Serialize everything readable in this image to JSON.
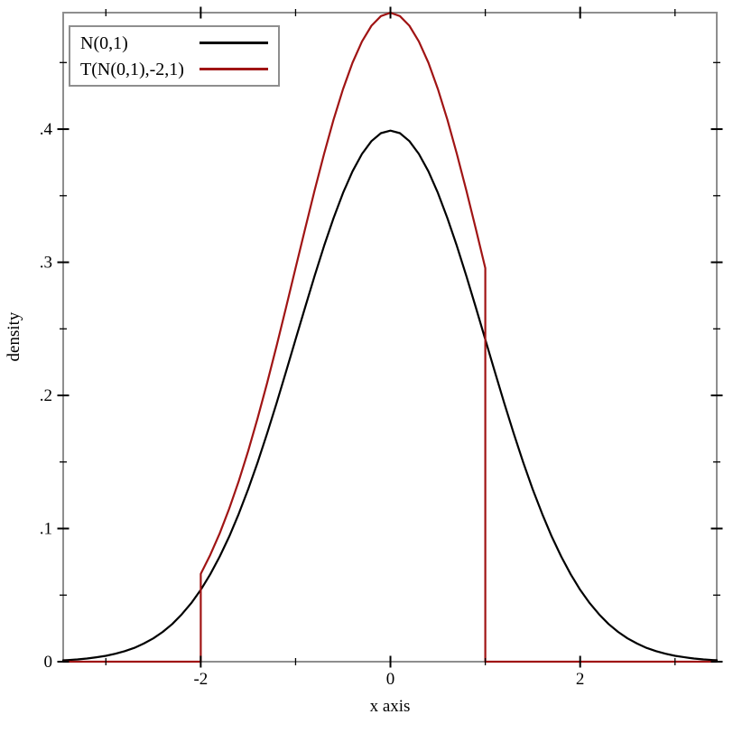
{
  "canvas": {
    "background": "#ffffff"
  },
  "chart_data": {
    "type": "line",
    "title": "",
    "xlabel": "x axis",
    "ylabel": "density",
    "xlim": [
      -3.45,
      3.44
    ],
    "ylim": [
      0,
      0.4875
    ],
    "grid": false,
    "background": "#ffffff",
    "frame_color": "#8e8e8e",
    "tick_color": "#000000",
    "mirror_ticks": true,
    "legend": {
      "position": "top-left",
      "border_color": "#8e8e8e",
      "entries": [
        "N(0,1)",
        "T(N(0,1),-2,1)"
      ]
    },
    "x_ticks": {
      "major": [
        {
          "v": -2,
          "label": "-2"
        },
        {
          "v": 0,
          "label": "0"
        },
        {
          "v": 2,
          "label": "2"
        }
      ],
      "minor": [
        -3,
        -1,
        1,
        3
      ]
    },
    "y_ticks": {
      "major": [
        {
          "v": 0,
          "label": "0"
        },
        {
          "v": 0.1,
          "label": ".1"
        },
        {
          "v": 0.2,
          "label": ".2"
        },
        {
          "v": 0.3,
          "label": ".3"
        },
        {
          "v": 0.4,
          "label": ".4"
        }
      ],
      "minor": [
        0.05,
        0.15,
        0.25,
        0.35,
        0.45
      ]
    },
    "series": [
      {
        "name": "N(0,1)",
        "description": "standard normal density",
        "color": "#000000",
        "stroke_width": 2.2,
        "peak": [
          0,
          0.3989
        ],
        "points": [
          [
            -3.45,
            0.001
          ],
          [
            -3.4,
            0.0012
          ],
          [
            -3.3,
            0.0017
          ],
          [
            -3.2,
            0.0024
          ],
          [
            -3.1,
            0.0033
          ],
          [
            -3.0,
            0.0044
          ],
          [
            -2.9,
            0.006
          ],
          [
            -2.8,
            0.0079
          ],
          [
            -2.7,
            0.0104
          ],
          [
            -2.6,
            0.0136
          ],
          [
            -2.5,
            0.0175
          ],
          [
            -2.4,
            0.0224
          ],
          [
            -2.3,
            0.0283
          ],
          [
            -2.2,
            0.0355
          ],
          [
            -2.1,
            0.044
          ],
          [
            -2.0,
            0.054
          ],
          [
            -1.9,
            0.0656
          ],
          [
            -1.8,
            0.079
          ],
          [
            -1.7,
            0.094
          ],
          [
            -1.6,
            0.1109
          ],
          [
            -1.5,
            0.1295
          ],
          [
            -1.4,
            0.1497
          ],
          [
            -1.3,
            0.1714
          ],
          [
            -1.2,
            0.1942
          ],
          [
            -1.1,
            0.2179
          ],
          [
            -1.0,
            0.242
          ],
          [
            -0.9,
            0.2661
          ],
          [
            -0.8,
            0.2897
          ],
          [
            -0.7,
            0.3123
          ],
          [
            -0.6,
            0.3332
          ],
          [
            -0.5,
            0.3521
          ],
          [
            -0.4,
            0.3683
          ],
          [
            -0.3,
            0.3814
          ],
          [
            -0.2,
            0.391
          ],
          [
            -0.1,
            0.397
          ],
          [
            0.0,
            0.3989
          ],
          [
            0.1,
            0.397
          ],
          [
            0.2,
            0.391
          ],
          [
            0.3,
            0.3814
          ],
          [
            0.4,
            0.3683
          ],
          [
            0.5,
            0.3521
          ],
          [
            0.6,
            0.3332
          ],
          [
            0.7,
            0.3123
          ],
          [
            0.8,
            0.2897
          ],
          [
            0.9,
            0.2661
          ],
          [
            1.0,
            0.242
          ],
          [
            1.1,
            0.2179
          ],
          [
            1.2,
            0.1942
          ],
          [
            1.3,
            0.1714
          ],
          [
            1.4,
            0.1497
          ],
          [
            1.5,
            0.1295
          ],
          [
            1.6,
            0.1109
          ],
          [
            1.7,
            0.094
          ],
          [
            1.8,
            0.079
          ],
          [
            1.9,
            0.0656
          ],
          [
            2.0,
            0.054
          ],
          [
            2.1,
            0.044
          ],
          [
            2.2,
            0.0355
          ],
          [
            2.3,
            0.0283
          ],
          [
            2.4,
            0.0224
          ],
          [
            2.5,
            0.0175
          ],
          [
            2.6,
            0.0136
          ],
          [
            2.7,
            0.0104
          ],
          [
            2.8,
            0.0079
          ],
          [
            2.9,
            0.006
          ],
          [
            3.0,
            0.0044
          ],
          [
            3.1,
            0.0033
          ],
          [
            3.2,
            0.0024
          ],
          [
            3.3,
            0.0017
          ],
          [
            3.4,
            0.0012
          ],
          [
            3.44,
            0.0011
          ]
        ]
      },
      {
        "name": "T(N(0,1),-2,1)",
        "description": "normal density truncated to [-2,1]",
        "color": "#a01414",
        "stroke_width": 2.2,
        "truncation_bounds": [
          -2,
          1
        ],
        "peak": [
          0,
          0.4874
        ],
        "boundary_values": {
          "at_-2": 0.066,
          "at_1": 0.2956
        },
        "points": [
          [
            -3.45,
            0
          ],
          [
            -2.0,
            0
          ],
          [
            -2.0,
            0.066
          ],
          [
            -1.9,
            0.0802
          ],
          [
            -1.8,
            0.0964
          ],
          [
            -1.7,
            0.1149
          ],
          [
            -1.6,
            0.1355
          ],
          [
            -1.5,
            0.1582
          ],
          [
            -1.4,
            0.1829
          ],
          [
            -1.3,
            0.2093
          ],
          [
            -1.2,
            0.2372
          ],
          [
            -1.1,
            0.2661
          ],
          [
            -1.0,
            0.2956
          ],
          [
            -0.9,
            0.3251
          ],
          [
            -0.8,
            0.3539
          ],
          [
            -0.7,
            0.3814
          ],
          [
            -0.6,
            0.4071
          ],
          [
            -0.5,
            0.4301
          ],
          [
            -0.4,
            0.4499
          ],
          [
            -0.3,
            0.4659
          ],
          [
            -0.2,
            0.4777
          ],
          [
            -0.1,
            0.4849
          ],
          [
            0.0,
            0.4874
          ],
          [
            0.1,
            0.4849
          ],
          [
            0.2,
            0.4777
          ],
          [
            0.3,
            0.4659
          ],
          [
            0.4,
            0.4499
          ],
          [
            0.5,
            0.4301
          ],
          [
            0.6,
            0.4071
          ],
          [
            0.7,
            0.3814
          ],
          [
            0.8,
            0.3539
          ],
          [
            0.9,
            0.3251
          ],
          [
            1.0,
            0.2956
          ],
          [
            1.0,
            0
          ],
          [
            3.44,
            0
          ]
        ]
      }
    ]
  }
}
